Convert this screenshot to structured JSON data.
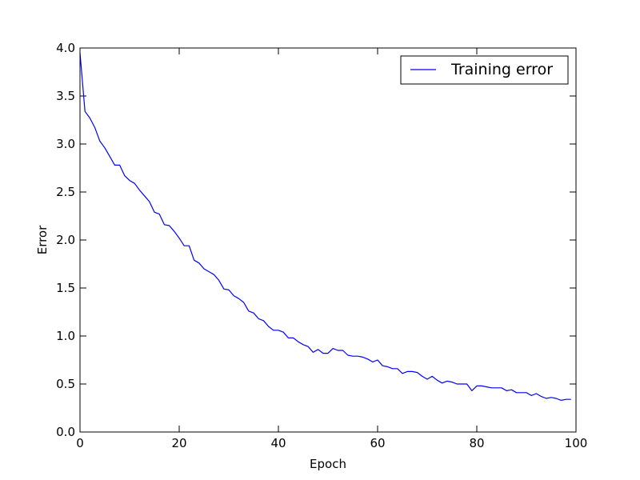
{
  "chart_data": {
    "type": "line",
    "xlabel": "Epoch",
    "ylabel": "Error",
    "xlim": [
      0,
      100
    ],
    "ylim": [
      0,
      4.0
    ],
    "xticks": [
      "0",
      "20",
      "40",
      "60",
      "80",
      "100"
    ],
    "yticks": [
      "0.0",
      "0.5",
      "1.0",
      "1.5",
      "2.0",
      "2.5",
      "3.0",
      "3.5",
      "4.0"
    ],
    "grid": false,
    "legend_position": "upper right",
    "series": [
      {
        "name": "Training error",
        "color": "#0000ff",
        "x": [
          0,
          1,
          2,
          3,
          4,
          5,
          6,
          7,
          8,
          9,
          10,
          11,
          12,
          13,
          14,
          15,
          16,
          17,
          18,
          19,
          20,
          21,
          22,
          23,
          24,
          25,
          26,
          27,
          28,
          29,
          30,
          31,
          32,
          33,
          34,
          35,
          36,
          37,
          38,
          39,
          40,
          41,
          42,
          43,
          44,
          45,
          46,
          47,
          48,
          49,
          50,
          51,
          52,
          53,
          54,
          55,
          56,
          57,
          58,
          59,
          60,
          61,
          62,
          63,
          64,
          65,
          66,
          67,
          68,
          69,
          70,
          71,
          72,
          73,
          74,
          75,
          76,
          77,
          78,
          79,
          80,
          81,
          82,
          83,
          84,
          85,
          86,
          87,
          88,
          89,
          90,
          91,
          92,
          93,
          94,
          95,
          96,
          97,
          98,
          99
        ],
        "y": [
          3.95,
          3.34,
          3.27,
          3.17,
          3.03,
          2.96,
          2.87,
          2.78,
          2.78,
          2.67,
          2.62,
          2.59,
          2.52,
          2.46,
          2.4,
          2.29,
          2.27,
          2.16,
          2.15,
          2.09,
          2.02,
          1.94,
          1.94,
          1.79,
          1.76,
          1.7,
          1.67,
          1.64,
          1.58,
          1.49,
          1.48,
          1.42,
          1.39,
          1.35,
          1.26,
          1.24,
          1.18,
          1.16,
          1.1,
          1.06,
          1.06,
          1.04,
          0.98,
          0.98,
          0.94,
          0.91,
          0.89,
          0.83,
          0.86,
          0.82,
          0.82,
          0.87,
          0.85,
          0.85,
          0.8,
          0.79,
          0.79,
          0.78,
          0.76,
          0.73,
          0.75,
          0.69,
          0.68,
          0.66,
          0.66,
          0.61,
          0.63,
          0.63,
          0.62,
          0.58,
          0.55,
          0.58,
          0.54,
          0.51,
          0.53,
          0.52,
          0.5,
          0.5,
          0.5,
          0.43,
          0.48,
          0.48,
          0.47,
          0.46,
          0.46,
          0.46,
          0.43,
          0.44,
          0.41,
          0.41,
          0.41,
          0.38,
          0.4,
          0.37,
          0.35,
          0.36,
          0.35,
          0.33,
          0.34,
          0.34
        ]
      }
    ]
  }
}
